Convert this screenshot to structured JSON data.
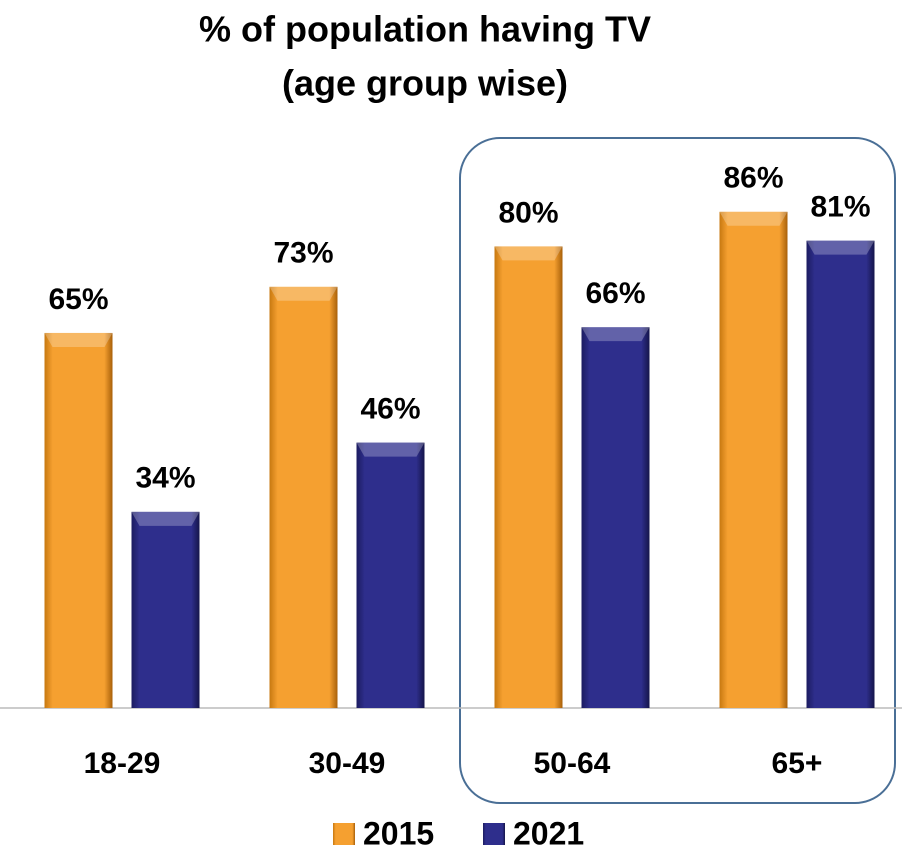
{
  "chart_data": {
    "type": "bar",
    "title": "% of population having TV",
    "subtitle": "(age group wise)",
    "categories": [
      "18-29",
      "30-49",
      "50-64",
      "65+"
    ],
    "series": [
      {
        "name": "2015",
        "color": "#f5a030",
        "values": [
          65,
          73,
          80,
          86
        ],
        "value_labels": [
          "65%",
          "73%",
          "80%",
          "86%"
        ]
      },
      {
        "name": "2021",
        "color": "#2e2e8c",
        "values": [
          34,
          46,
          66,
          81
        ],
        "value_labels": [
          "34%",
          "46%",
          "66%",
          "81%"
        ]
      }
    ],
    "legend": "bottom"
  }
}
